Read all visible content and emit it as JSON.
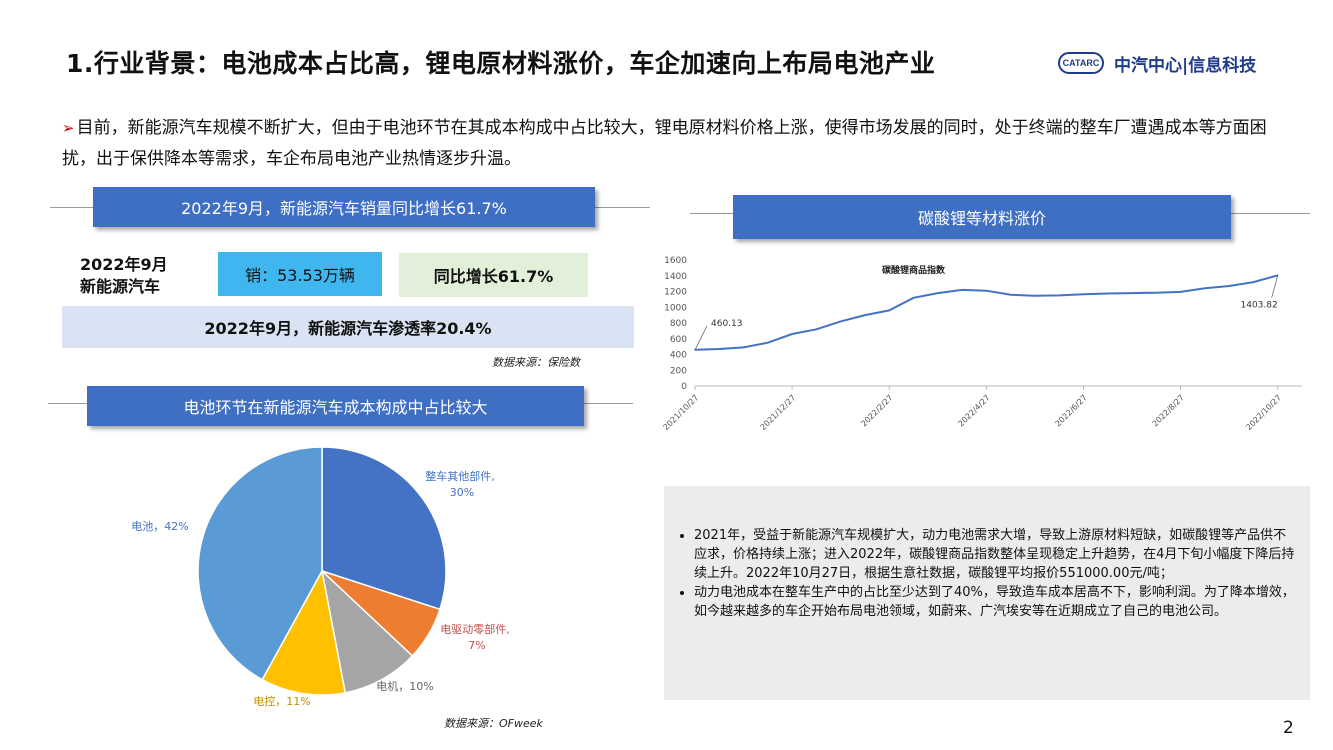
{
  "header": {
    "title": "1.行业背景：电池成本占比高，锂电原材料涨价，车企加速向上布局电池产业",
    "logo_mark": "CATARC",
    "logo_text": "中汽中心|信息科技"
  },
  "intro": {
    "arrow": "➢",
    "text": "目前，新能源汽车规模不断扩大，但由于电池环节在其成本构成中占比较大，锂电原材料价格上涨，使得市场发展的同时，处于终端的整车厂遭遇成本等方面困扰，出于保供降本等需求，车企布局电池产业热情逐步升温。"
  },
  "sales_section": {
    "banner": "2022年9月，新能源汽车销量同比增长61.7%",
    "label_line1": "2022年9月",
    "label_line2": "新能源汽车",
    "sales_box": "销：53.53万辆",
    "growth_box": "同比增长61.7%",
    "penetration": "2022年9月，新能源汽车渗透率20.4%",
    "source": "数据来源：保险数"
  },
  "pie_section": {
    "banner": "电池环节在新能源汽车成本构成中占比较大",
    "source": "数据来源：OFweek"
  },
  "line_section": {
    "banner": "碳酸锂等材料涨价"
  },
  "chart_data": [
    {
      "type": "pie",
      "slices": [
        {
          "label_line1": "整车其他部件,",
          "label_line2": "30%",
          "value": 30,
          "color": "#4472c4"
        },
        {
          "label_line1": "电驱动零部件,",
          "label_line2": "7%",
          "value": 7,
          "color": "#ed7d31"
        },
        {
          "label_line1": "电机，10%",
          "label_line2": "",
          "value": 10,
          "color": "#a5a5a5"
        },
        {
          "label_line1": "电控，11%",
          "label_line2": "",
          "value": 11,
          "color": "#ffc000"
        },
        {
          "label_line1": "电池，42%",
          "label_line2": "",
          "value": 42,
          "color": "#5b9bd5"
        }
      ]
    },
    {
      "type": "line",
      "title": "碳酸锂商品指数",
      "ylim": [
        0,
        1600
      ],
      "yticks": [
        0,
        200,
        400,
        600,
        800,
        1000,
        1200,
        1400,
        1600
      ],
      "xlim": [
        0,
        12.5
      ],
      "x_ticks": [
        {
          "x": 0,
          "label": "2021/10/27"
        },
        {
          "x": 2,
          "label": "2021/12/27"
        },
        {
          "x": 4,
          "label": "2022/2/27"
        },
        {
          "x": 6,
          "label": "2022/4/27"
        },
        {
          "x": 8,
          "label": "2022/6/27"
        },
        {
          "x": 10,
          "label": "2022/8/27"
        },
        {
          "x": 12,
          "label": "2022/10/27"
        }
      ],
      "color": "#4472c4",
      "x": [
        0,
        0.5,
        1,
        1.5,
        2,
        2.5,
        3,
        3.5,
        4,
        4.5,
        5,
        5.5,
        6,
        6.5,
        7,
        7.5,
        8,
        8.5,
        9,
        9.5,
        10,
        10.5,
        11,
        11.5,
        12
      ],
      "y": [
        460.13,
        470,
        490,
        550,
        660,
        720,
        820,
        900,
        960,
        1120,
        1180,
        1220,
        1210,
        1160,
        1145,
        1150,
        1165,
        1175,
        1180,
        1185,
        1195,
        1240,
        1270,
        1320,
        1403.82
      ],
      "annotations": [
        {
          "x": 0,
          "y": 460.13,
          "label": "460.13"
        },
        {
          "x": 12,
          "y": 1403.82,
          "label": "1403.82"
        }
      ]
    }
  ],
  "notes": {
    "bullets": [
      "2021年，受益于新能源汽车规模扩大，动力电池需求大增，导致上游原材料短缺，如碳酸锂等产品供不应求，价格持续上涨；进入2022年，碳酸锂商品指数整体呈现稳定上升趋势，在4月下旬小幅度下降后持续上升。2022年10月27日，根据生意社数据，碳酸锂平均报价551000.00元/吨；",
      "动力电池成本在整车生产中的占比至少达到了40%，导致造车成本居高不下，影响利润。为了降本增效，如今越来越多的车企开始布局电池领域，如蔚来、广汽埃安等在近期成立了自己的电池公司。"
    ]
  },
  "page_number": "2"
}
